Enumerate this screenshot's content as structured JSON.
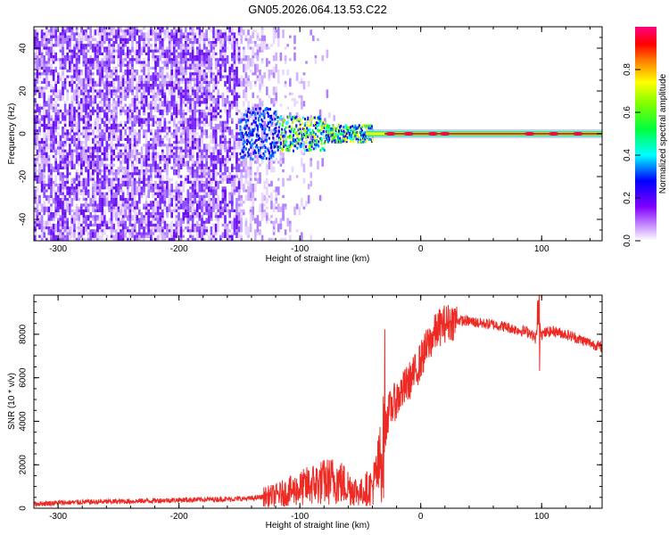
{
  "title": "GN05.2026.064.13.53.C22",
  "chart_data": [
    {
      "type": "heatmap",
      "name": "spectrogram",
      "xlabel": "Height of straight line (km)",
      "ylabel": "Frequency (Hz)",
      "xlim": [
        -320,
        150
      ],
      "ylim": [
        -50,
        50
      ],
      "xticks": [
        -300,
        -200,
        -100,
        0,
        100
      ],
      "xtick_labels": [
        "-300",
        "-200",
        "-100",
        "0",
        "100"
      ],
      "yticks": [
        -40,
        -20,
        0,
        20,
        40
      ],
      "ytick_labels": [
        "-40",
        "-20",
        "0",
        "20",
        "40"
      ],
      "colorbar": {
        "label": "Normalized spectral amplitude",
        "range": [
          0,
          1
        ],
        "ticks": [
          0.0,
          0.2,
          0.4,
          0.6,
          0.8
        ],
        "tick_labels": [
          "0.0",
          "0.2",
          "0.4",
          "0.6",
          "0.8"
        ],
        "colormap": [
          "#ffffff",
          "#8000ff",
          "#0000ff",
          "#00ffff",
          "#00ff00",
          "#ffff00",
          "#ff8000",
          "#ff0000",
          "#ff0080"
        ]
      },
      "description_points": {
        "noise_region_x": [
          -320,
          -110
        ],
        "signal_onset_x": -150,
        "center_frequency": 0
      }
    },
    {
      "type": "line",
      "name": "snr",
      "xlabel": "Height of straight line (km)",
      "ylabel": "SNR (10 * v/v)",
      "xlim": [
        -320,
        150
      ],
      "ylim": [
        0,
        9800
      ],
      "xticks": [
        -300,
        -200,
        -100,
        0,
        100
      ],
      "xtick_labels": [
        "-300",
        "-200",
        "-100",
        "0",
        "100"
      ],
      "yticks": [
        0,
        2000,
        4000,
        6000,
        8000
      ],
      "ytick_labels": [
        "0",
        "2000",
        "4000",
        "6000",
        "8000"
      ],
      "line_color": "#ee2a24",
      "series": [
        {
          "name": "SNR",
          "x": [
            -320,
            -300,
            -280,
            -260,
            -240,
            -220,
            -200,
            -180,
            -160,
            -140,
            -120,
            -100,
            -90,
            -80,
            -70,
            -60,
            -50,
            -45,
            -40,
            -35,
            -30,
            -28,
            -25,
            -20,
            -15,
            -10,
            -5,
            0,
            5,
            10,
            15,
            20,
            30,
            40,
            50,
            60,
            70,
            80,
            90,
            95,
            98,
            100,
            105,
            110,
            120,
            130,
            140,
            150
          ],
          "y": [
            200,
            250,
            280,
            300,
            320,
            350,
            380,
            400,
            420,
            450,
            600,
            900,
            1100,
            1200,
            1300,
            1000,
            700,
            900,
            1000,
            1800,
            3000,
            4200,
            4600,
            5000,
            5400,
            5800,
            6200,
            6800,
            7400,
            7900,
            8300,
            8500,
            8650,
            8600,
            8500,
            8450,
            8350,
            8200,
            8100,
            7800,
            8800,
            8000,
            8100,
            8150,
            8000,
            7800,
            7600,
            7400
          ]
        }
      ]
    }
  ]
}
